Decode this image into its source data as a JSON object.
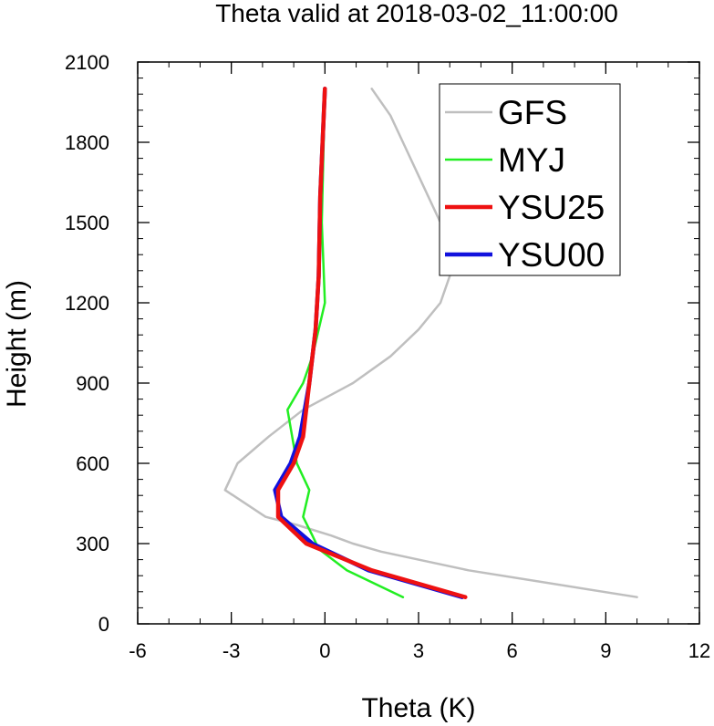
{
  "chart_data": {
    "type": "line",
    "title": "Theta valid at 2018-03-02_11:00:00",
    "xlabel": "Theta (K)",
    "ylabel": "Height (m)",
    "xlim": [
      -6,
      12
    ],
    "ylim": [
      0,
      2100
    ],
    "x_ticks": [
      "-6",
      "-3",
      "0",
      "3",
      "6",
      "9",
      "12"
    ],
    "y_ticks": [
      "0",
      "300",
      "600",
      "900",
      "1200",
      "1500",
      "1800",
      "2100"
    ],
    "x_tick_values": [
      -6,
      -3,
      0,
      3,
      6,
      9,
      12
    ],
    "y_tick_values": [
      0,
      300,
      600,
      900,
      1200,
      1500,
      1800,
      2100
    ],
    "legend_position": "top-right",
    "series": [
      {
        "name": "GFS",
        "color": "#bfbfbf",
        "points": [
          [
            10.0,
            100
          ],
          [
            4.6,
            200
          ],
          [
            1.8,
            270
          ],
          [
            0.9,
            300
          ],
          [
            0.2,
            330
          ],
          [
            -0.9,
            370
          ],
          [
            -1.9,
            400
          ],
          [
            -3.2,
            500
          ],
          [
            -2.8,
            600
          ],
          [
            -1.8,
            700
          ],
          [
            -0.7,
            800
          ],
          [
            0.9,
            900
          ],
          [
            2.1,
            1000
          ],
          [
            3.0,
            1100
          ],
          [
            3.7,
            1200
          ],
          [
            4.0,
            1300
          ],
          [
            3.9,
            1400
          ],
          [
            3.7,
            1500
          ],
          [
            3.3,
            1600
          ],
          [
            2.9,
            1700
          ],
          [
            2.5,
            1800
          ],
          [
            2.1,
            1900
          ],
          [
            1.5,
            2000
          ]
        ]
      },
      {
        "name": "MYJ",
        "color": "#22ee22",
        "points": [
          [
            2.5,
            100
          ],
          [
            0.7,
            200
          ],
          [
            -0.2,
            280
          ],
          [
            -0.4,
            330
          ],
          [
            -0.7,
            400
          ],
          [
            -0.5,
            500
          ],
          [
            -0.9,
            600
          ],
          [
            -1.2,
            800
          ],
          [
            -0.7,
            900
          ],
          [
            -0.4,
            1000
          ],
          [
            0.0,
            1200
          ],
          [
            -0.1,
            1500
          ],
          [
            0.0,
            2000
          ]
        ]
      },
      {
        "name": "YSU25",
        "color": "#ee1111",
        "points": [
          [
            4.5,
            100
          ],
          [
            1.5,
            200
          ],
          [
            -0.6,
            300
          ],
          [
            -1.5,
            400
          ],
          [
            -1.5,
            500
          ],
          [
            -1.0,
            600
          ],
          [
            -0.7,
            700
          ],
          [
            -0.5,
            900
          ],
          [
            -0.3,
            1100
          ],
          [
            -0.2,
            1300
          ],
          [
            -0.15,
            1600
          ],
          [
            0.0,
            2000
          ]
        ]
      },
      {
        "name": "YSU00",
        "color": "#1111dd",
        "points": [
          [
            4.4,
            100
          ],
          [
            1.4,
            200
          ],
          [
            -0.4,
            300
          ],
          [
            -1.4,
            400
          ],
          [
            -1.6,
            500
          ],
          [
            -1.1,
            600
          ],
          [
            -0.8,
            700
          ],
          [
            -0.5,
            900
          ],
          [
            -0.3,
            1100
          ],
          [
            -0.2,
            1300
          ],
          [
            -0.15,
            1600
          ],
          [
            0.0,
            2000
          ]
        ]
      }
    ]
  }
}
